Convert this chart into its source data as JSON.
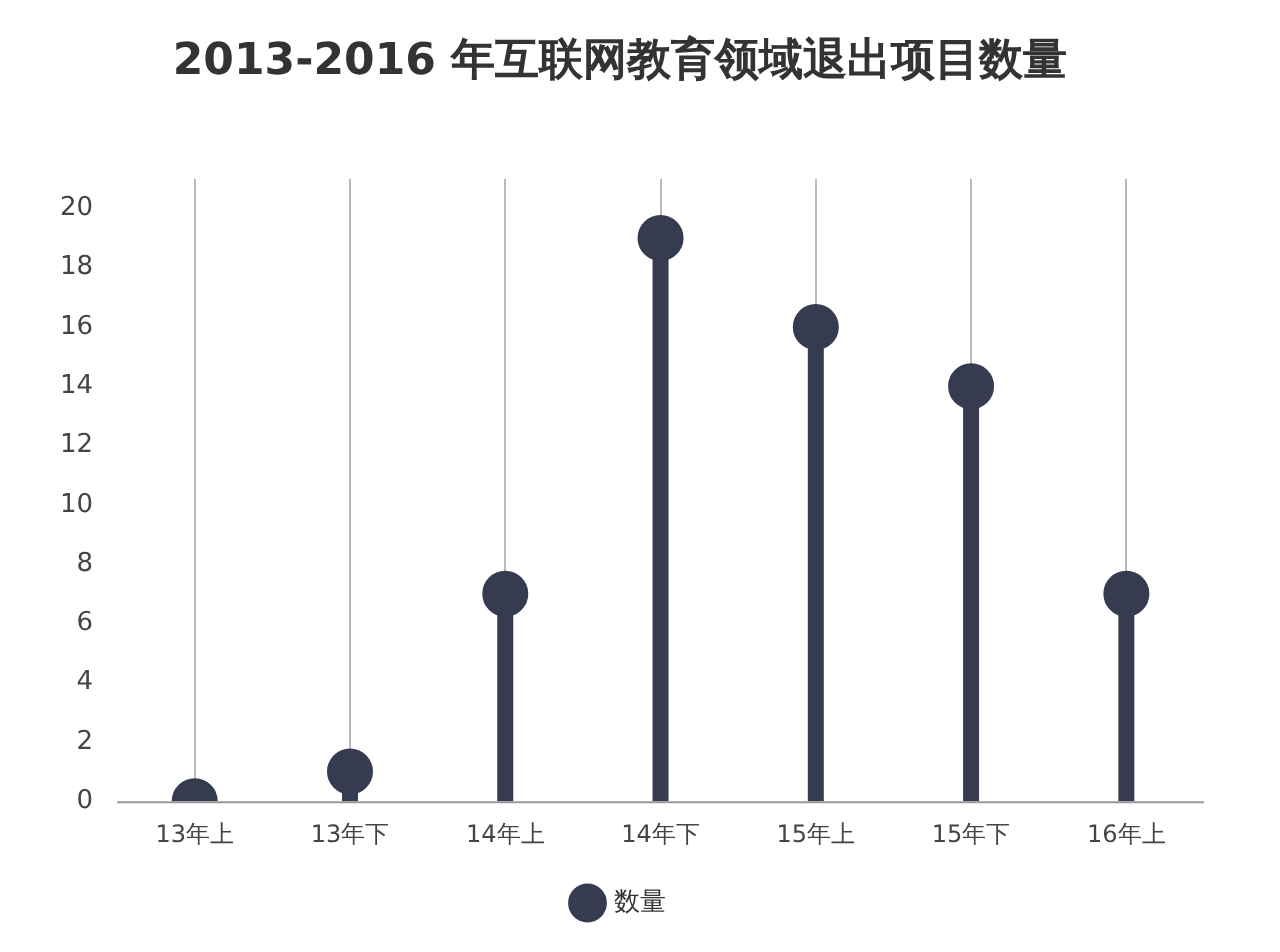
{
  "chart_data": {
    "type": "lollipop",
    "title": "2013-2016 年互联网教育领域退出项目数量",
    "categories": [
      "13年上",
      "13年下",
      "14年上",
      "14年下",
      "15年上",
      "15年下",
      "16年上"
    ],
    "series": [
      {
        "name": "数量",
        "color": "#363b4f",
        "values": [
          0,
          1,
          7,
          19,
          16,
          14,
          7
        ]
      }
    ],
    "ylim": [
      0,
      21
    ],
    "yticks": [
      0,
      2,
      4,
      6,
      8,
      10,
      12,
      14,
      16,
      18,
      20
    ],
    "grid": "x",
    "legend": "bottom",
    "marker": "circle"
  }
}
